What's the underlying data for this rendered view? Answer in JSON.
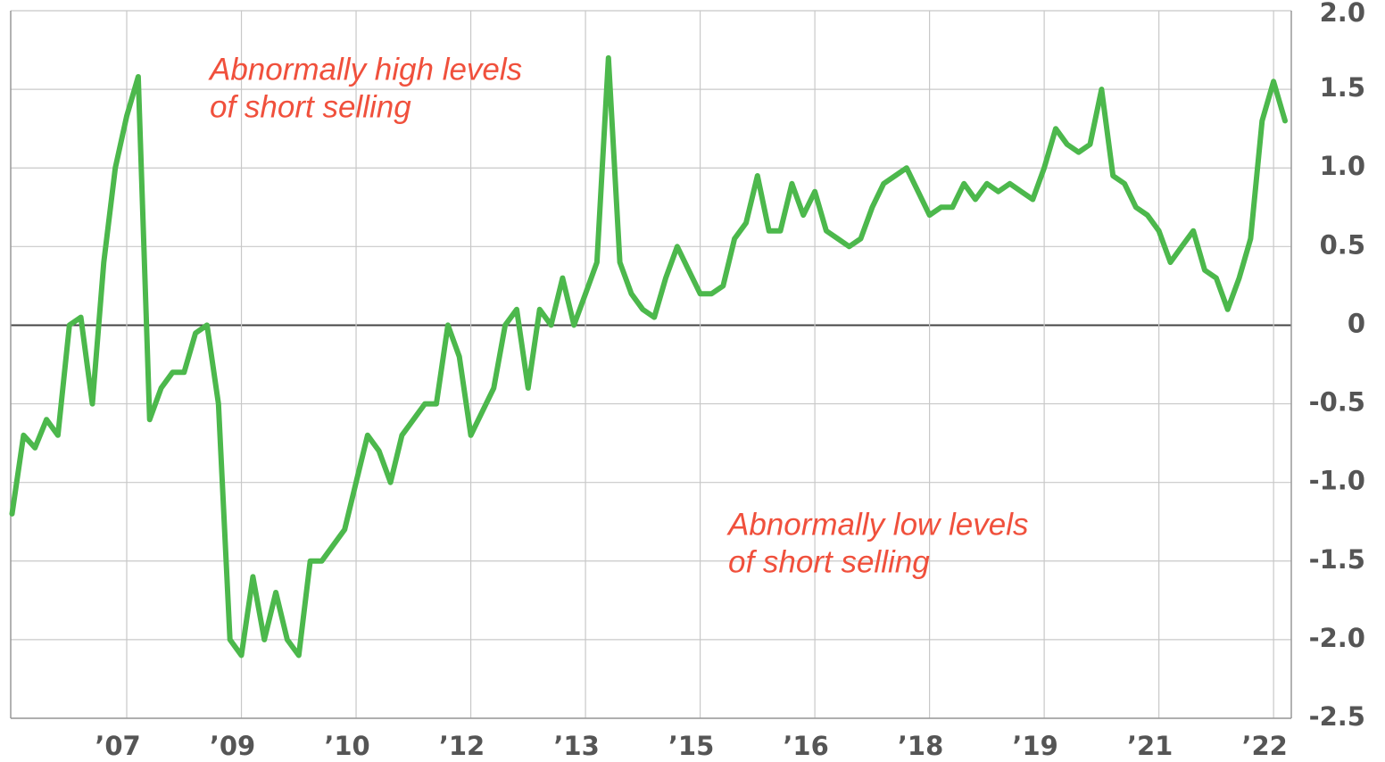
{
  "chart_data": {
    "type": "line",
    "annotations": [
      {
        "lines": [
          "Abnormally high levels",
          "of short selling"
        ]
      },
      {
        "lines": [
          "Abnormally low levels",
          "of short selling"
        ]
      }
    ],
    "categories": [
      null,
      null,
      null,
      null,
      null,
      null,
      null,
      null,
      null,
      null,
      "’07",
      null,
      null,
      null,
      null,
      null,
      null,
      null,
      null,
      null,
      "’09",
      null,
      null,
      null,
      null,
      null,
      null,
      null,
      null,
      null,
      "’10",
      null,
      null,
      null,
      null,
      null,
      null,
      null,
      null,
      null,
      "’12",
      null,
      null,
      null,
      null,
      null,
      null,
      null,
      null,
      null,
      "’13",
      null,
      null,
      null,
      null,
      null,
      null,
      null,
      null,
      null,
      "’15",
      null,
      null,
      null,
      null,
      null,
      null,
      null,
      null,
      null,
      "’16",
      null,
      null,
      null,
      null,
      null,
      null,
      null,
      null,
      null,
      "’18",
      null,
      null,
      null,
      null,
      null,
      null,
      null,
      null,
      null,
      "’19",
      null,
      null,
      null,
      null,
      null,
      null,
      null,
      null,
      null,
      "’21",
      null,
      null,
      null,
      null,
      null,
      null,
      null,
      null,
      null,
      "’22",
      null
    ],
    "series": [
      {
        "color": "#4cb84c",
        "values": [
          -1.2,
          -0.7,
          -0.78,
          -0.6,
          -0.7,
          0.0,
          0.05,
          -0.5,
          0.4,
          1.0,
          1.33,
          1.58,
          -0.6,
          -0.4,
          -0.3,
          -0.3,
          -0.05,
          0.0,
          -0.5,
          -2.0,
          -2.1,
          -1.6,
          -2.0,
          -1.7,
          -2.0,
          -2.1,
          -1.5,
          -1.5,
          -1.4,
          -1.3,
          -1.0,
          -0.7,
          -0.8,
          -1.0,
          -0.7,
          -0.6,
          -0.5,
          -0.5,
          0.0,
          -0.2,
          -0.7,
          -0.55,
          -0.4,
          0.0,
          0.1,
          -0.4,
          0.1,
          0.0,
          0.3,
          0.0,
          0.2,
          0.4,
          1.7,
          0.4,
          0.2,
          0.1,
          0.05,
          0.3,
          0.5,
          0.35,
          0.2,
          0.2,
          0.25,
          0.55,
          0.65,
          0.95,
          0.6,
          0.6,
          0.9,
          0.7,
          0.85,
          0.6,
          0.55,
          0.5,
          0.55,
          0.75,
          0.9,
          0.95,
          1.0,
          0.85,
          0.7,
          0.75,
          0.75,
          0.9,
          0.8,
          0.9,
          0.85,
          0.9,
          0.85,
          0.8,
          1.0,
          1.25,
          1.15,
          1.1,
          1.15,
          1.5,
          0.95,
          0.9,
          0.75,
          0.7,
          0.6,
          0.4,
          0.5,
          0.6,
          0.35,
          0.3,
          0.1,
          0.3,
          0.55,
          1.3,
          1.55,
          1.3
        ]
      }
    ],
    "ylim": [
      -2.5,
      2.0
    ],
    "yticks": [
      {
        "value": 2.0,
        "label": "2.0"
      },
      1.5,
      {
        "value": 1.0,
        "label": "1.0"
      },
      0.5,
      0,
      -0.5,
      {
        "value": -1.0,
        "label": "-1.0"
      },
      -1.5,
      {
        "value": -2.0,
        "label": "-2.0"
      },
      -2.5
    ],
    "grid": true
  }
}
